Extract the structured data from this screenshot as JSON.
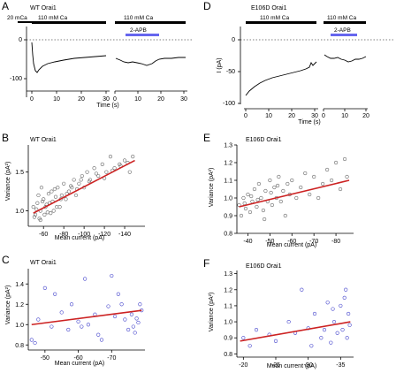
{
  "figure": {
    "panel_letters": {
      "A": "A",
      "B": "B",
      "C": "C",
      "D": "D",
      "E": "E",
      "F": "F"
    },
    "colors": {
      "axis": "#000000",
      "fit_line": "#cc2222",
      "points_B": "#666666",
      "points_C": "#4444cc",
      "points_E": "#666666",
      "points_F": "#4444cc",
      "bar": "#000000",
      "apb_bar": "#6666ee"
    }
  },
  "panel_A": {
    "title": "WT Orai1",
    "bar_20ca": "20 mCa",
    "bar_110ca_1": "110 mM Ca",
    "bar_110ca_2": "110 mM Ca",
    "apb": "2-APB",
    "xlabel": "Time (s)",
    "yticks": [
      "0",
      "-100"
    ],
    "xticks_left": [
      "0",
      "10",
      "20",
      "30"
    ],
    "xticks_right": [
      "0",
      "10",
      "20",
      "30"
    ]
  },
  "panel_D": {
    "title": "E106D Orai1",
    "bar_110ca_1": "110 mM Ca",
    "bar_110ca_2": "110 mM Ca",
    "apb": "2-APB",
    "xlabel": "Time (s)",
    "ylabel": "I (pA)",
    "yticks": [
      "0",
      "-50",
      "-100"
    ],
    "xticks_left": [
      "0",
      "10",
      "20",
      "30"
    ],
    "xticks_right": [
      "0",
      "10",
      "20"
    ]
  },
  "chart_data": [
    {
      "id": "B",
      "type": "scatter",
      "title": "WT Orai1",
      "xlabel": "Mean current (pA)",
      "ylabel": "Variance (pA²)",
      "xlim": [
        -45,
        -160
      ],
      "ylim": [
        0.8,
        1.85
      ],
      "xticks": [
        -60,
        -80,
        -100,
        -120,
        -140
      ],
      "xtick_labels": [
        "-60",
        "-80",
        "-100",
        "-120",
        "-140"
      ],
      "yticks": [
        1.0,
        1.5
      ],
      "ytick_labels": [
        "1.0",
        "1.5"
      ],
      "fit": {
        "x": [
          -50,
          -150
        ],
        "y": [
          0.97,
          1.65
        ]
      },
      "points": {
        "x": [
          -50,
          -52,
          -54,
          -55,
          -56,
          -57,
          -58,
          -60,
          -62,
          -64,
          -66,
          -68,
          -70,
          -72,
          -74,
          -76,
          -78,
          -80,
          -82,
          -85,
          -88,
          -90,
          -92,
          -95,
          -98,
          -100,
          -103,
          -106,
          -110,
          -114,
          -118,
          -122,
          -126,
          -130,
          -135,
          -140,
          -145,
          -148,
          -51,
          -53,
          -57,
          -59,
          -61,
          -63,
          -65,
          -67,
          -69,
          -71,
          -73,
          -77,
          -83,
          -87,
          -93,
          -97,
          -105,
          -112,
          -120,
          -128,
          -136,
          -143
        ],
        "y": [
          1.05,
          0.95,
          1.1,
          1.2,
          0.9,
          1.0,
          1.3,
          1.15,
          1.05,
          0.98,
          1.1,
          1.25,
          1.0,
          1.18,
          1.3,
          1.05,
          1.2,
          1.35,
          1.15,
          1.25,
          1.3,
          1.4,
          1.2,
          1.35,
          1.45,
          1.3,
          1.5,
          1.4,
          1.55,
          1.45,
          1.6,
          1.5,
          1.7,
          1.55,
          1.6,
          1.65,
          1.5,
          1.7,
          0.92,
          1.02,
          0.88,
          1.12,
          0.95,
          1.08,
          1.22,
          0.97,
          1.12,
          1.28,
          1.05,
          1.15,
          1.22,
          1.32,
          1.28,
          1.4,
          1.38,
          1.48,
          1.42,
          1.52,
          1.58,
          1.62
        ]
      }
    },
    {
      "id": "C",
      "type": "scatter",
      "title": "WT Orai1",
      "xlabel": "Mean current (pA)",
      "ylabel": "Variance (pA²)",
      "xlim": [
        -45,
        -80
      ],
      "ylim": [
        0.75,
        1.55
      ],
      "xticks": [
        -50,
        -60,
        -70
      ],
      "xtick_labels": [
        "-50",
        "-60",
        "-70"
      ],
      "yticks": [
        0.8,
        1.0,
        1.2,
        1.4
      ],
      "ytick_labels": [
        "0.8",
        "1.0",
        "1.2",
        "1.4"
      ],
      "fit": {
        "x": [
          -46,
          -79
        ],
        "y": [
          1.0,
          1.14
        ]
      },
      "points": {
        "x": [
          -46,
          -47,
          -48,
          -50,
          -52,
          -53,
          -55,
          -57,
          -58,
          -60,
          -61,
          -62,
          -63,
          -65,
          -66,
          -67,
          -69,
          -70,
          -71,
          -72,
          -73,
          -74,
          -75,
          -76,
          -77,
          -78,
          -79,
          -78.5,
          -77.5,
          -76.5
        ],
        "y": [
          0.85,
          0.82,
          1.05,
          1.36,
          0.98,
          1.3,
          1.12,
          0.95,
          1.2,
          1.03,
          0.98,
          1.45,
          1.0,
          1.1,
          0.9,
          0.85,
          1.18,
          1.48,
          1.08,
          1.3,
          1.2,
          1.05,
          0.95,
          1.1,
          0.92,
          1.02,
          1.14,
          1.2,
          1.06,
          0.98
        ]
      }
    },
    {
      "id": "E",
      "type": "scatter",
      "title": "E106D Orai1",
      "xlabel": "Mean current (pA)",
      "ylabel": "Variance (pA²)",
      "xlim": [
        -35,
        -88
      ],
      "ylim": [
        0.8,
        1.3
      ],
      "xticks": [
        -40,
        -50,
        -60,
        -70,
        -80
      ],
      "xtick_labels": [
        "-40",
        "-50",
        "-60",
        "-70",
        "-80"
      ],
      "yticks": [
        0.8,
        0.9,
        1.0,
        1.1,
        1.2,
        1.3
      ],
      "ytick_labels": [
        "0.8",
        "0.9",
        "1.0",
        "1.1",
        "1.2",
        "1.3"
      ],
      "fit": {
        "x": [
          -36,
          -86
        ],
        "y": [
          0.95,
          1.1
        ]
      },
      "points": {
        "x": [
          -36,
          -37,
          -38,
          -39,
          -40,
          -41,
          -42,
          -43,
          -44,
          -45,
          -46,
          -47,
          -48,
          -49,
          -50,
          -51,
          -52,
          -53,
          -54,
          -55,
          -56,
          -57,
          -58,
          -59,
          -60,
          -62,
          -64,
          -66,
          -68,
          -70,
          -72,
          -74,
          -76,
          -78,
          -80,
          -82,
          -84,
          -85,
          -38.5,
          -41.5,
          -44.5,
          -47.5,
          -50.5,
          -53.5
        ],
        "y": [
          0.96,
          0.9,
          1.0,
          0.94,
          1.02,
          0.92,
          0.98,
          1.05,
          0.95,
          1.08,
          1.0,
          0.93,
          1.04,
          0.98,
          1.1,
          0.96,
          1.06,
          1.0,
          1.12,
          0.98,
          1.04,
          0.9,
          1.08,
          1.02,
          1.1,
          1.0,
          1.06,
          1.14,
          1.02,
          1.12,
          1.0,
          1.08,
          1.16,
          1.1,
          1.2,
          1.05,
          1.22,
          1.12,
          0.97,
          1.01,
          0.99,
          0.88,
          1.03,
          1.07
        ]
      }
    },
    {
      "id": "F",
      "type": "scatter",
      "title": "E106D Orai1",
      "xlabel": "Mean current (pA)",
      "ylabel": "Variance (pA²)",
      "xlim": [
        -19,
        -37
      ],
      "ylim": [
        0.78,
        1.32
      ],
      "xticks": [
        -20,
        -25,
        -30,
        -35
      ],
      "xtick_labels": [
        "-20",
        "-25",
        "-30",
        "-35"
      ],
      "yticks": [
        0.8,
        0.9,
        1.0,
        1.1,
        1.2,
        1.3
      ],
      "ytick_labels": [
        "0.8",
        "0.9",
        "1.0",
        "1.1",
        "1.2",
        "1.3"
      ],
      "fit": {
        "x": [
          -19.5,
          -36.5
        ],
        "y": [
          0.88,
          1.0
        ]
      },
      "points": {
        "x": [
          -20,
          -21,
          -22,
          -24,
          -25,
          -27,
          -28,
          -29,
          -30,
          -31,
          -32,
          -33,
          -33.5,
          -34,
          -34.5,
          -35,
          -35.3,
          -35.6,
          -36,
          -36.2,
          -36.4,
          -30.5,
          -32.5,
          -33.8,
          -35.8
        ],
        "y": [
          0.9,
          0.85,
          0.95,
          0.92,
          0.88,
          1.0,
          0.93,
          1.2,
          0.96,
          1.05,
          0.9,
          1.12,
          0.87,
          1.0,
          0.93,
          1.1,
          0.95,
          1.15,
          0.9,
          1.05,
          0.98,
          0.85,
          0.95,
          1.08,
          1.2
        ]
      }
    }
  ]
}
